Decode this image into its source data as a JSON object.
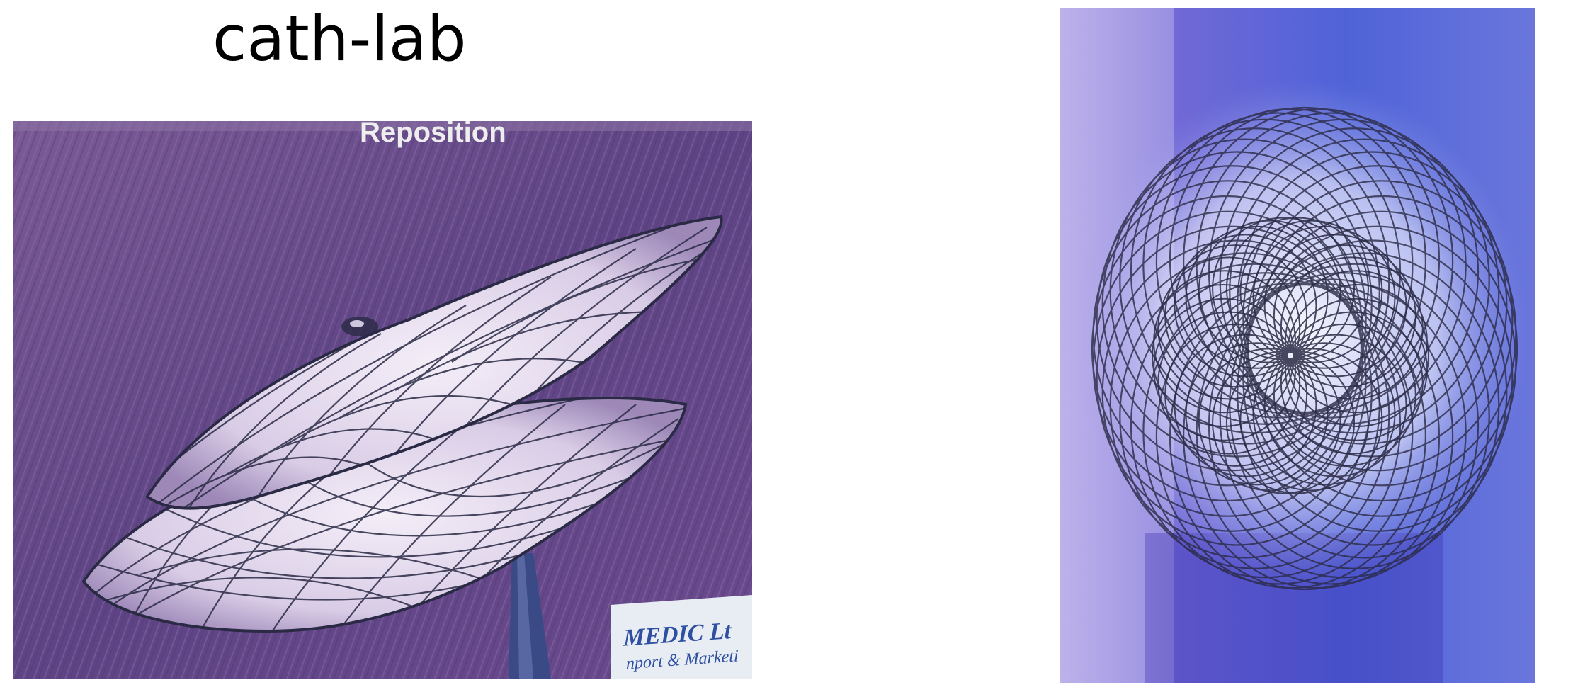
{
  "slide": {
    "title": "cath-lab"
  },
  "left_photo": {
    "caption": "Reposition",
    "label_line1": "MEDIC Lt",
    "label_line2": "nport & Marketi"
  },
  "colors": {
    "background": "#ffffff",
    "left_backdrop": "#6b4d8c",
    "right_backdrop": "#5a5fcf",
    "mesh": "#2a2a45"
  }
}
